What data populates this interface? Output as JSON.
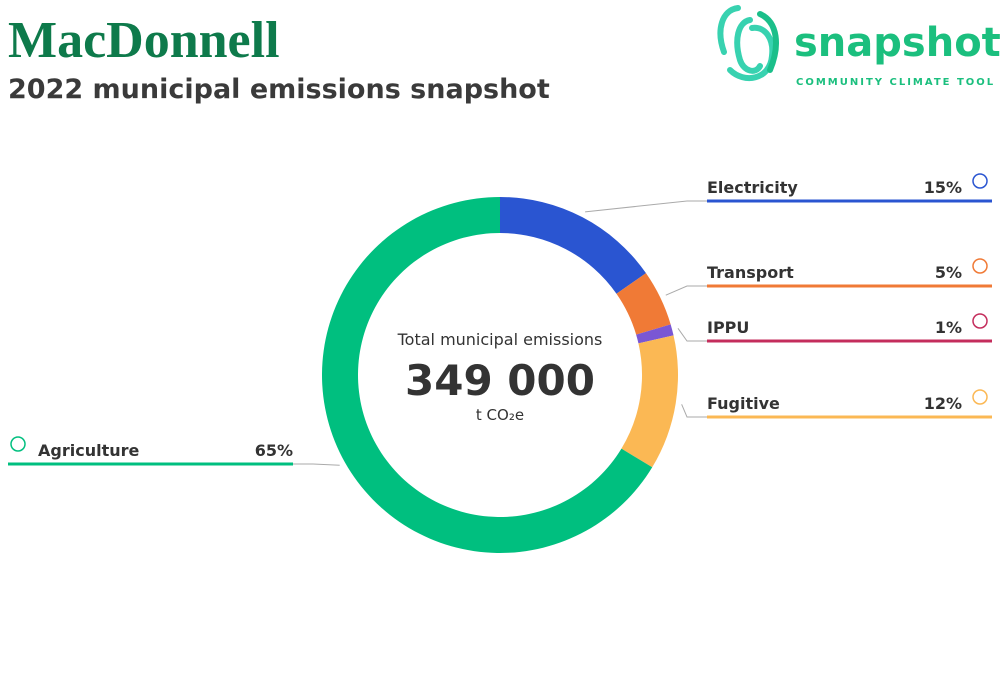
{
  "chart_data": {
    "type": "donut",
    "title": "MacDonnell",
    "subtitle": "2022 municipal emissions snapshot",
    "logo": {
      "name": "snapshot",
      "tagline": "COMMUNITY CLIMATE TOOL"
    },
    "total": {
      "label": "Total municipal emissions",
      "value": 349000,
      "value_label": "349 000",
      "unit": "t CO₂e"
    },
    "categories": [
      "Electricity",
      "Transport",
      "IPPU",
      "Fugitive",
      "Agriculture"
    ],
    "values": [
      15,
      5,
      1,
      12,
      65
    ],
    "value_labels": [
      "15%",
      "5%",
      "1%",
      "12%",
      "65%"
    ],
    "colors": [
      "#2a55d1",
      "#f07a36",
      "#7a57d4",
      "#fbb854",
      "#00bf7f"
    ],
    "label_colors": [
      "#2a55d1",
      "#f07a36",
      "#c42d5c",
      "#fbb854",
      "#00bf7f"
    ]
  }
}
